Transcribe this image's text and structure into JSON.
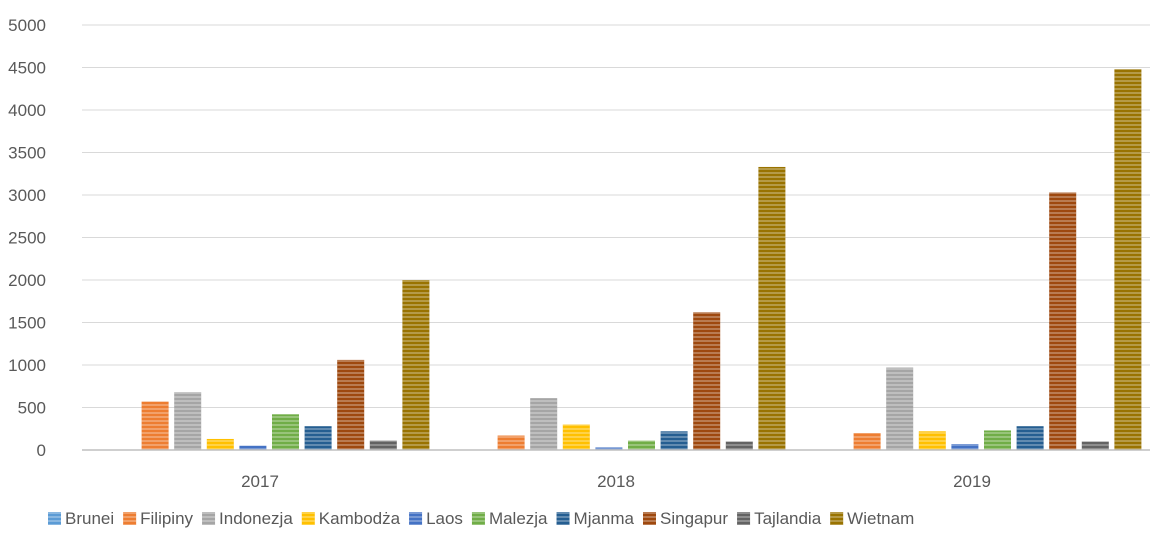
{
  "chart_data": {
    "type": "bar",
    "title": "",
    "xlabel": "",
    "ylabel": "",
    "categories": [
      "2017",
      "2018",
      "2019"
    ],
    "ylim": [
      0,
      5000
    ],
    "yticks": [
      0,
      500,
      1000,
      1500,
      2000,
      2500,
      3000,
      3500,
      4000,
      4500,
      5000
    ],
    "grid": true,
    "legend_position": "bottom",
    "series": [
      {
        "name": "Brunei",
        "color": "#5B9BD5",
        "values": [
          0,
          0,
          0
        ]
      },
      {
        "name": "Filipiny",
        "color": "#ED7D31",
        "values": [
          570,
          170,
          200
        ]
      },
      {
        "name": "Indonezja",
        "color": "#A5A5A5",
        "values": [
          680,
          610,
          970
        ]
      },
      {
        "name": "Kambodża",
        "color": "#FFC000",
        "values": [
          130,
          300,
          220
        ]
      },
      {
        "name": "Laos",
        "color": "#4472C4",
        "values": [
          50,
          30,
          70
        ]
      },
      {
        "name": "Malezja",
        "color": "#70AD47",
        "values": [
          420,
          110,
          230
        ]
      },
      {
        "name": "Mjanma",
        "color": "#255E91",
        "values": [
          280,
          220,
          280
        ]
      },
      {
        "name": "Singapur",
        "color": "#9E480E",
        "values": [
          1060,
          1620,
          3030
        ]
      },
      {
        "name": "Tajlandia",
        "color": "#636363",
        "values": [
          110,
          100,
          100
        ]
      },
      {
        "name": "Wietnam",
        "color": "#997300",
        "values": [
          2000,
          3330,
          4480
        ]
      }
    ]
  }
}
